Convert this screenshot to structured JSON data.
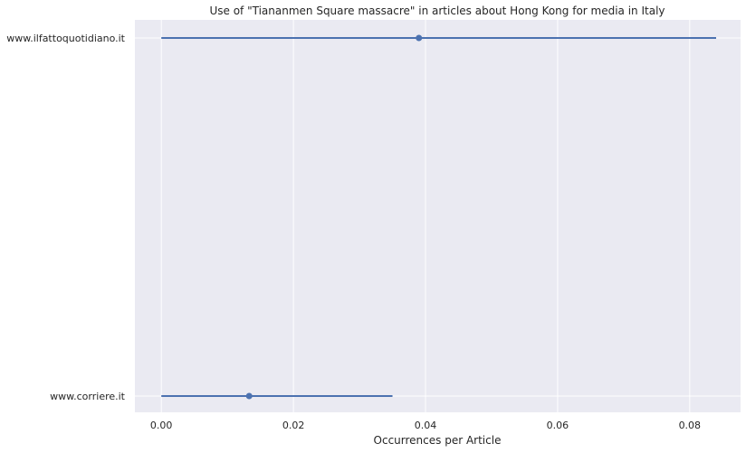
{
  "chart_data": {
    "type": "scatter",
    "title": "Use of \"Tiananmen Square massacre\" in articles about Hong Kong for media in Italy",
    "xlabel": "Occurrences per Article",
    "ylabel": "",
    "xlim": [
      -0.004,
      0.0877
    ],
    "x_ticks": [
      "0.00",
      "0.02",
      "0.04",
      "0.06",
      "0.08"
    ],
    "x_tick_values": [
      0.0,
      0.02,
      0.04,
      0.06,
      0.08
    ],
    "grid": true,
    "legend": "none",
    "categories": [
      "www.ilfattoquotidiano.it",
      "www.corriere.it"
    ],
    "points": [
      {
        "category": "www.ilfattoquotidiano.it",
        "value": 0.039,
        "ci_low": 0.0,
        "ci_high": 0.084
      },
      {
        "category": "www.corriere.it",
        "value": 0.0133,
        "ci_low": 0.0,
        "ci_high": 0.035
      }
    ],
    "colors": {
      "series": "#4c72b0",
      "background": "#eaeaf2",
      "grid": "#ffffff"
    }
  }
}
